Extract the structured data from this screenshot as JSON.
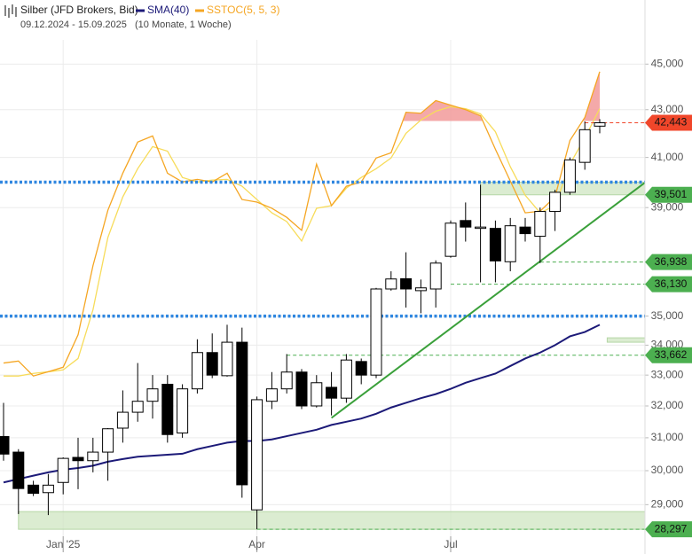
{
  "chart_data": {
    "type": "candlestick",
    "title": "Silber (JFD Brokers, Bid)",
    "subtitle": "09.12.2024 - 15.09.2025",
    "period": "(10 Monate, 1 Woche)",
    "log_scale": true,
    "grid": true,
    "categories": [
      null,
      null,
      null,
      null,
      "Jan '25",
      null,
      null,
      null,
      null,
      null,
      null,
      null,
      null,
      null,
      null,
      null,
      null,
      "Apr",
      null,
      null,
      null,
      null,
      null,
      null,
      null,
      null,
      null,
      null,
      null,
      null,
      "Jul",
      null,
      null,
      null,
      null,
      null,
      null,
      null,
      null,
      null,
      null
    ],
    "open": [
      31040,
      30560,
      29570,
      29350,
      29650,
      30400,
      30300,
      30560,
      31300,
      31800,
      32150,
      32700,
      31150,
      32550,
      33750,
      32980,
      34100,
      28850,
      32150,
      32550,
      33100,
      32000,
      32600,
      32250,
      33450,
      33000,
      35960,
      36330,
      35900,
      35960,
      37150,
      38500,
      38200,
      38200,
      36950,
      38250,
      37900,
      38850,
      39600,
      40800,
      42300
    ],
    "high": [
      32100,
      30650,
      29700,
      29900,
      30400,
      31000,
      31000,
      31300,
      32500,
      33400,
      33000,
      33000,
      32700,
      34200,
      34400,
      34700,
      34600,
      32300,
      33100,
      33700,
      33200,
      33000,
      33100,
      33700,
      33550,
      36000,
      36600,
      37300,
      36300,
      37000,
      38500,
      39200,
      39900,
      38500,
      38600,
      38600,
      39000,
      39700,
      41000,
      42500,
      42600
    ],
    "low": [
      30300,
      28730,
      29250,
      28700,
      29300,
      29450,
      29950,
      29700,
      30850,
      31500,
      31600,
      30850,
      31000,
      32400,
      32900,
      32950,
      29200,
      28300,
      31900,
      32400,
      31900,
      31950,
      31700,
      32100,
      32700,
      32900,
      35900,
      35300,
      35100,
      35300,
      37100,
      37700,
      36200,
      36200,
      36600,
      37700,
      36900,
      38100,
      39500,
      40500,
      42000
    ],
    "close": [
      30500,
      29470,
      29330,
      29570,
      30370,
      30300,
      30560,
      31280,
      31800,
      32150,
      32550,
      31100,
      32550,
      33750,
      33000,
      34100,
      29580,
      32200,
      32550,
      33100,
      32000,
      32750,
      32250,
      33500,
      33000,
      35960,
      36320,
      35960,
      36000,
      36900,
      38400,
      38250,
      38250,
      36980,
      38300,
      38000,
      38850,
      39600,
      40900,
      42150,
      42443
    ],
    "up_color": "#ffffff",
    "down_color": "#000000",
    "series": [
      {
        "name": "SMA(40)",
        "color": "#1c1a78",
        "values": [
          29650,
          29750,
          29850,
          29950,
          30030,
          30080,
          30150,
          30270,
          30350,
          30420,
          30450,
          30480,
          30510,
          30650,
          30750,
          30850,
          30900,
          30900,
          30950,
          31050,
          31150,
          31250,
          31400,
          31500,
          31600,
          31750,
          31950,
          32100,
          32250,
          32380,
          32550,
          32750,
          32900,
          33050,
          33300,
          33550,
          33750,
          34000,
          34300,
          34450,
          34700
        ]
      },
      {
        "name": "SSTOC(5, 5, 3)",
        "color": "#f5a623",
        "axis": "y2",
        "values": [
          5.4,
          6.0,
          1.4,
          2.7,
          4.1,
          14.1,
          35.4,
          52.5,
          63.9,
          73.5,
          75.4,
          63.9,
          61.2,
          62.0,
          61.2,
          63.9,
          55.8,
          55.0,
          53.1,
          50.3,
          46.3,
          66.7,
          53.9,
          59.9,
          61.2,
          68.6,
          70.2,
          82.7,
          82.4,
          86.3,
          84.9,
          83.5,
          81.6,
          71.3,
          61.5,
          51.7,
          52.2,
          56.6,
          74.0,
          81.1,
          95.2
        ]
      },
      {
        "color": "#f7dc5a",
        "axis": "y2",
        "values": [
          1.4,
          1.4,
          2.2,
          2.7,
          3.3,
          6.8,
          21.8,
          44.1,
          56.6,
          65.3,
          72.1,
          70.7,
          62.6,
          61.2,
          61.8,
          62.0,
          59.9,
          55.8,
          51.7,
          49.0,
          43.0,
          53.1,
          53.9,
          59.3,
          62.6,
          65.3,
          68.6,
          76.2,
          80.3,
          83.0,
          84.4,
          83.8,
          82.2,
          76.7,
          65.9,
          57.1,
          51.7,
          53.9,
          66.7,
          74.8,
          83.8
        ]
      }
    ],
    "overbought": {
      "value": 80,
      "color": "#f29a9a"
    },
    "ylim": [
      28100,
      46100
    ],
    "y2lim": [
      -48,
      105
    ],
    "yticks": [
      {
        "value": 29000,
        "label": "29,000"
      },
      {
        "value": 30000,
        "label": "30,000"
      },
      {
        "value": 31000,
        "label": "31,000"
      },
      {
        "value": 32000,
        "label": "32,000"
      },
      {
        "value": 33000,
        "label": "33,000"
      },
      {
        "value": 34000,
        "label": "34,000"
      },
      {
        "value": 35000,
        "label": "35,000"
      },
      {
        "value": 39000,
        "label": "39,000"
      },
      {
        "value": 41000,
        "label": "41,000"
      },
      {
        "value": 43000,
        "label": "43,000"
      },
      {
        "value": 45000,
        "label": "45,000"
      }
    ],
    "hlines": [
      {
        "value": 40000,
        "color": "#2f86e0"
      },
      {
        "value": 35000,
        "color": "#2f86e0"
      }
    ],
    "zones": [
      {
        "low": 39501,
        "high": 40000,
        "start": 32
      },
      {
        "low": 28297,
        "high": 28800,
        "start": 1
      },
      {
        "low": 34100,
        "high": 34250,
        "start": 40.5
      }
    ],
    "trendline": {
      "start": {
        "index": 22,
        "value": 31620
      },
      "end": {
        "index": 43,
        "value": 39970
      },
      "color": "#3aa03a"
    },
    "price_labels": [
      {
        "value": 42443,
        "label": "42,443",
        "color": "#f0462a",
        "start": 39,
        "dash": true
      },
      {
        "value": 39501,
        "label": "39,501",
        "color": "#4caf50",
        "start": 32,
        "dash": false
      },
      {
        "value": 36938,
        "label": "36,938",
        "color": "#4caf50",
        "start": 36,
        "dash": true
      },
      {
        "value": 36130,
        "label": "36,130",
        "color": "#4caf50",
        "start": 30,
        "dash": true
      },
      {
        "value": 33662,
        "label": "33,662",
        "color": "#4caf50",
        "start": 19,
        "dash": true
      },
      {
        "value": 28297,
        "label": "28,297",
        "color": "#4caf50",
        "start": 17,
        "dash": true
      }
    ]
  }
}
